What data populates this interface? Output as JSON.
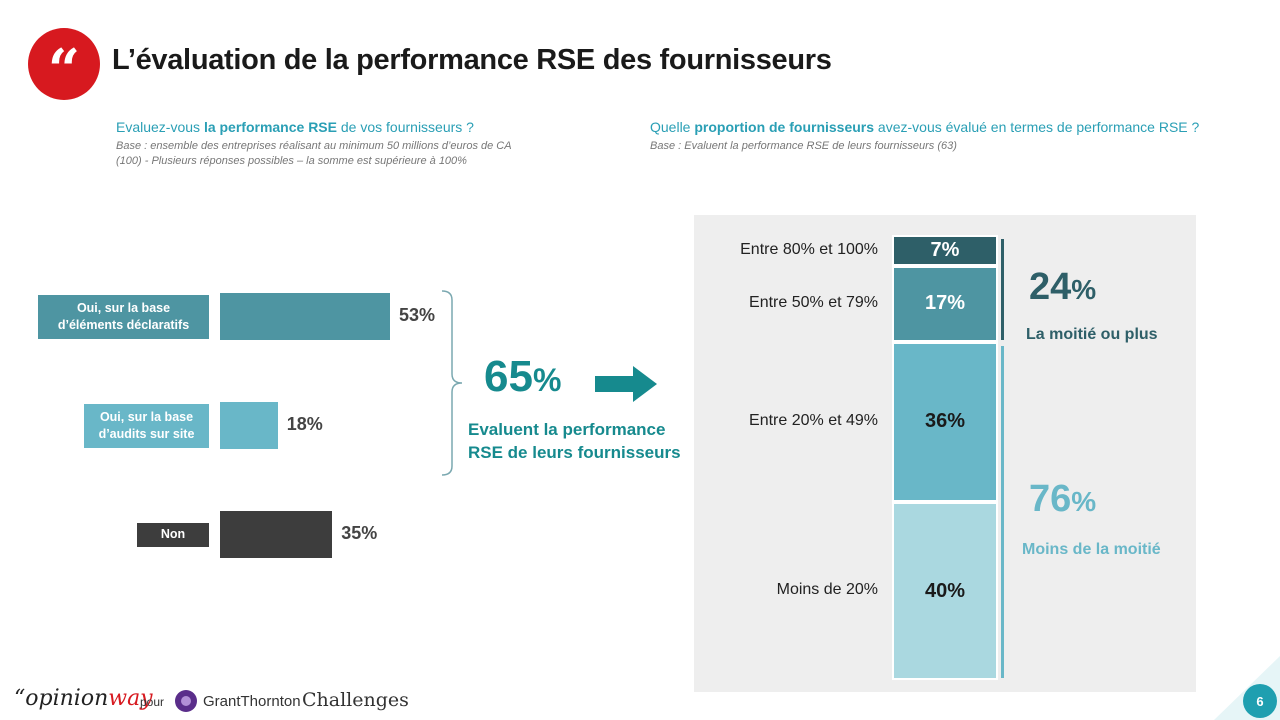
{
  "header": {
    "quote_glyph": "“",
    "title": "L’évaluation de la performance RSE des fournisseurs"
  },
  "left_question": {
    "prefix": "Evaluez-vous ",
    "bold": "la performance RSE",
    "suffix": " de vos fournisseurs ?",
    "base_line1": "Base : ensemble des entreprises réalisant au minimum 50 millions d’euros de CA",
    "base_line2": "(100) - Plusieurs réponses possibles – la somme est supérieure à 100%"
  },
  "right_question": {
    "prefix": "Quelle ",
    "bold": "proportion de fournisseurs",
    "suffix": " avez-vous évalué en termes de performance RSE ?",
    "base": "Base : Evaluent la performance RSE de leurs fournisseurs (63)"
  },
  "chart_data": [
    {
      "type": "bar",
      "orientation": "horizontal",
      "categories": [
        "Oui, sur la base d’éléments déclaratifs",
        "Oui, sur la base d’audits sur site",
        "Non"
      ],
      "category_lines": [
        [
          "Oui, sur la base",
          "d’éléments déclaratifs"
        ],
        [
          "Oui, sur la base",
          "d’audits sur site"
        ],
        [
          "Non"
        ]
      ],
      "values": [
        53,
        18,
        35
      ],
      "value_labels": [
        "53%",
        "18%",
        "35%"
      ],
      "colors": [
        "#4e95a2",
        "#69b7c8",
        "#3d3d3d"
      ],
      "xlim": [
        0,
        100
      ],
      "summary": {
        "value": "65",
        "unit": "%",
        "label_line1": "Evaluent la performance",
        "label_line2": "RSE de leurs fournisseurs"
      }
    },
    {
      "type": "bar",
      "stacked": true,
      "categories": [
        "Entre 80% et 100%",
        "Entre 50% et 79%",
        "Entre 20% et 49%",
        "Moins de 20%"
      ],
      "values": [
        7,
        17,
        36,
        40
      ],
      "value_labels": [
        "7%",
        "17%",
        "36%",
        "40%"
      ],
      "colors": [
        "#2e5f68",
        "#4e95a2",
        "#69b7c8",
        "#aad8e0"
      ],
      "text_colors": [
        "#ffffff",
        "#ffffff",
        "#1a1a1a",
        "#1a1a1a"
      ],
      "groups": [
        {
          "value": "24",
          "unit": "%",
          "label": "La moitié ou plus",
          "color": "#2e5f68"
        },
        {
          "value": "76",
          "unit": "%",
          "label": "Moins de la moitié",
          "color": "#69b7c8"
        }
      ]
    }
  ],
  "footer": {
    "brand_quote": "“",
    "brand_opinion": "opinion",
    "brand_way": "way",
    "pour": "pour",
    "grant_thornton": "GrantThornton",
    "challenges": "Challenges",
    "page_number": "6"
  }
}
